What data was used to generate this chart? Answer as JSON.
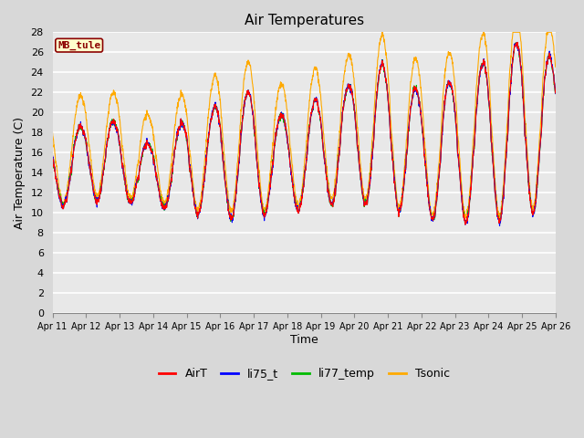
{
  "title": "Air Temperatures",
  "ylabel": "Air Temperature (C)",
  "xlabel": "Time",
  "site_label": "MB_tule",
  "ylim": [
    0,
    28
  ],
  "line_colors": {
    "AirT": "#ff0000",
    "li75_t": "#0000ff",
    "li77_temp": "#00bb00",
    "Tsonic": "#ffaa00"
  },
  "legend_labels": [
    "AirT",
    "li75_t",
    "li77_temp",
    "Tsonic"
  ],
  "background_color": "#d8d8d8",
  "plot_bg_color": "#e8e8e8",
  "grid_color": "#ffffff",
  "n_days": 15,
  "n_points_per_day": 144,
  "xtick_labels": [
    "Apr 11",
    "Apr 12",
    "Apr 13",
    "Apr 14",
    "Apr 15",
    "Apr 16",
    "Apr 17",
    "Apr 18",
    "Apr 19",
    "Apr 20",
    "Apr 21",
    "Apr 22",
    "Apr 23",
    "Apr 24",
    "Apr 25",
    "Apr 26"
  ]
}
